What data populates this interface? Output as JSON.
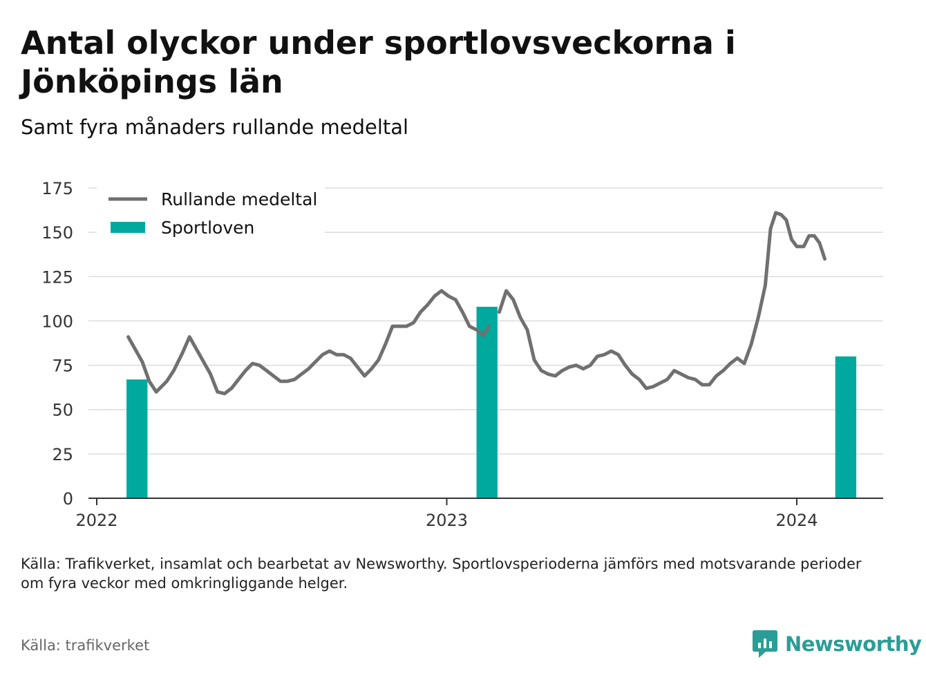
{
  "title": "Antal olyckor under sportlovsveckorna i Jönköpings län",
  "subtitle": "Samt fyra månaders rullande medeltal",
  "footnote": "Källa: Trafikverket, insamlat och bearbetat av Newsworthy. Sportlovsperioderna jämförs med motsvarande perioder om fyra veckor med omkringliggande helger.",
  "source": "Källa: trafikverket",
  "logo_text": "Newsworthy",
  "colors": {
    "line": "#707070",
    "bar": "#00a99d",
    "grid": "#dcdcdc",
    "logo": "#2a9d96"
  },
  "chart_data": {
    "type": "bar+line",
    "ylim": [
      0,
      175
    ],
    "yticks": [
      0,
      25,
      50,
      75,
      100,
      125,
      150,
      175
    ],
    "xlim": [
      2022,
      2024.25
    ],
    "xticks": [
      {
        "value": 2022,
        "label": "2022"
      },
      {
        "value": 2023,
        "label": "2023"
      },
      {
        "value": 2024,
        "label": "2024"
      }
    ],
    "grid": true,
    "legend_position": "top-left",
    "legend": [
      {
        "label": "Rullande medeltal",
        "kind": "line"
      },
      {
        "label": "Sportloven",
        "kind": "bar"
      }
    ],
    "bars": {
      "name": "Sportloven",
      "width_years": 0.06,
      "points": [
        {
          "x": 2022.115,
          "y": 67
        },
        {
          "x": 2023.115,
          "y": 108
        },
        {
          "x": 2024.14,
          "y": 80
        }
      ]
    },
    "line": {
      "name": "Rullande medeltal",
      "segments": [
        [
          [
            2022.09,
            91
          ],
          [
            2022.11,
            84
          ],
          [
            2022.13,
            77
          ],
          [
            2022.15,
            66
          ],
          [
            2022.17,
            60
          ],
          [
            2022.2,
            66
          ],
          [
            2022.22,
            72
          ],
          [
            2022.245,
            82
          ],
          [
            2022.265,
            91
          ],
          [
            2022.285,
            84
          ],
          [
            2022.305,
            77
          ],
          [
            2022.325,
            70
          ],
          [
            2022.345,
            60
          ],
          [
            2022.365,
            59
          ],
          [
            2022.385,
            62
          ],
          [
            2022.405,
            67
          ],
          [
            2022.425,
            72
          ],
          [
            2022.445,
            76
          ],
          [
            2022.465,
            75
          ],
          [
            2022.485,
            72
          ],
          [
            2022.505,
            69
          ],
          [
            2022.525,
            66
          ],
          [
            2022.545,
            66
          ],
          [
            2022.565,
            67
          ],
          [
            2022.585,
            70
          ],
          [
            2022.605,
            73
          ],
          [
            2022.625,
            77
          ],
          [
            2022.645,
            81
          ],
          [
            2022.665,
            83
          ],
          [
            2022.685,
            81
          ],
          [
            2022.705,
            81
          ],
          [
            2022.725,
            79
          ],
          [
            2022.745,
            74
          ],
          [
            2022.765,
            69
          ],
          [
            2022.785,
            73
          ],
          [
            2022.805,
            78
          ],
          [
            2022.825,
            87
          ],
          [
            2022.845,
            97
          ],
          [
            2022.865,
            97
          ],
          [
            2022.885,
            97
          ],
          [
            2022.905,
            99
          ],
          [
            2022.925,
            105
          ],
          [
            2022.945,
            109
          ],
          [
            2022.965,
            114
          ],
          [
            2022.985,
            117
          ],
          [
            2023.005,
            114
          ],
          [
            2023.025,
            112
          ],
          [
            2023.045,
            105
          ],
          [
            2023.065,
            97
          ],
          [
            2023.085,
            95
          ],
          [
            2023.105,
            92
          ],
          [
            2023.12,
            97
          ]
        ],
        [
          [
            2023.15,
            105
          ],
          [
            2023.17,
            117
          ],
          [
            2023.19,
            112
          ],
          [
            2023.21,
            102
          ],
          [
            2023.23,
            95
          ],
          [
            2023.25,
            78
          ],
          [
            2023.27,
            72
          ],
          [
            2023.29,
            70
          ],
          [
            2023.31,
            69
          ],
          [
            2023.33,
            72
          ],
          [
            2023.35,
            74
          ],
          [
            2023.37,
            75
          ],
          [
            2023.39,
            73
          ],
          [
            2023.41,
            75
          ],
          [
            2023.43,
            80
          ],
          [
            2023.45,
            81
          ],
          [
            2023.47,
            83
          ],
          [
            2023.49,
            81
          ],
          [
            2023.51,
            75
          ],
          [
            2023.53,
            70
          ],
          [
            2023.55,
            67
          ],
          [
            2023.57,
            62
          ],
          [
            2023.59,
            63
          ],
          [
            2023.61,
            65
          ],
          [
            2023.63,
            67
          ],
          [
            2023.65,
            72
          ],
          [
            2023.67,
            70
          ],
          [
            2023.69,
            68
          ],
          [
            2023.71,
            67
          ],
          [
            2023.73,
            64
          ],
          [
            2023.75,
            64
          ],
          [
            2023.77,
            69
          ],
          [
            2023.79,
            72
          ],
          [
            2023.81,
            76
          ],
          [
            2023.83,
            79
          ],
          [
            2023.85,
            76
          ],
          [
            2023.87,
            87
          ],
          [
            2023.89,
            102
          ],
          [
            2023.91,
            120
          ],
          [
            2023.925,
            152
          ],
          [
            2023.94,
            161
          ],
          [
            2023.955,
            160
          ],
          [
            2023.97,
            157
          ],
          [
            2023.985,
            146
          ],
          [
            2024.0,
            142
          ],
          [
            2024.02,
            142
          ],
          [
            2024.035,
            148
          ],
          [
            2024.05,
            148
          ],
          [
            2024.065,
            144
          ],
          [
            2024.08,
            135
          ]
        ]
      ]
    }
  }
}
